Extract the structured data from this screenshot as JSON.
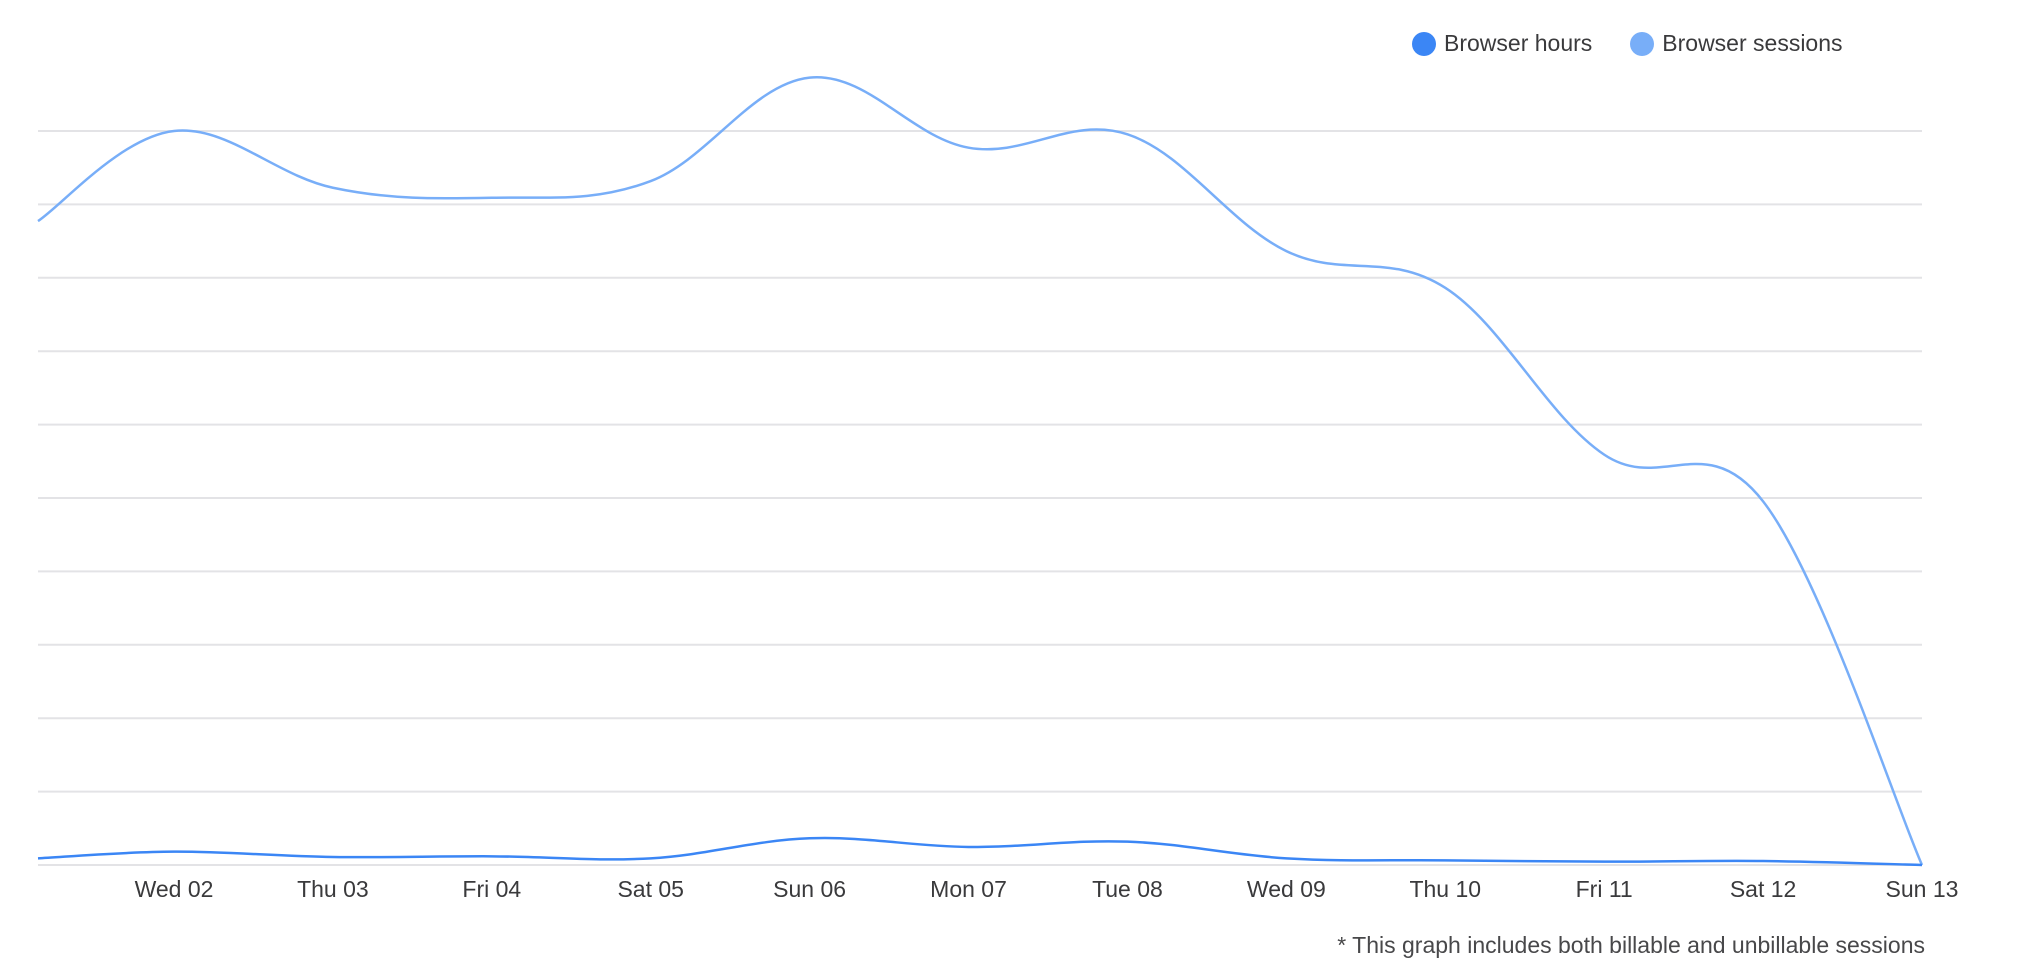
{
  "legend": {
    "items": [
      {
        "label": "Browser hours",
        "color": "#3b86f5"
      },
      {
        "label": "Browser sessions",
        "color": "#78aef8"
      }
    ]
  },
  "footnote": "* This graph includes both billable and unbillable sessions",
  "chart_data": {
    "type": "line",
    "smooth": true,
    "categories": [
      "",
      "Wed 02",
      "Thu 03",
      "Fri 04",
      "Sat 05",
      "Sun 06",
      "Mon 07",
      "Tue 08",
      "Wed 09",
      "Thu 10",
      "Fri 11",
      "Sat 12",
      "Sun 13"
    ],
    "series": [
      {
        "name": "Browser sessions",
        "color": "#78aef8",
        "values": [
          96.5,
          110.0,
          101.5,
          100.0,
          102.5,
          118.0,
          107.5,
          109.5,
          92.0,
          86.5,
          61.5,
          54.5,
          0
        ]
      },
      {
        "name": "Browser hours",
        "color": "#3b86f5",
        "values": [
          1.0,
          2.0,
          1.2,
          1.3,
          1.0,
          4.0,
          2.7,
          3.5,
          1.0,
          0.7,
          0.5,
          0.6,
          0
        ]
      }
    ],
    "ylim": [
      0,
      110
    ],
    "grid": true,
    "gridlines": 11,
    "legend_position": "top-right"
  }
}
